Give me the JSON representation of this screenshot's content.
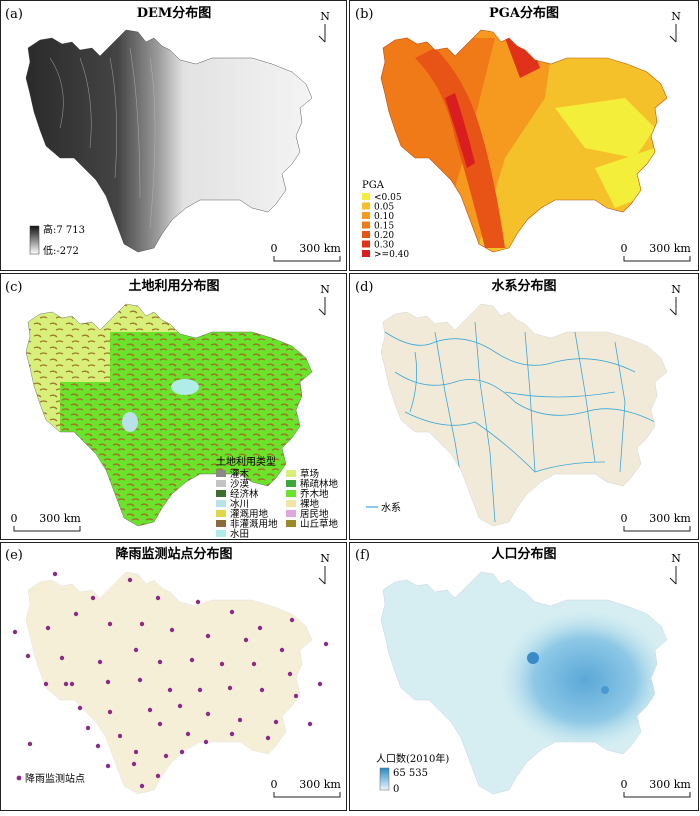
{
  "panels": [
    {
      "id": "a",
      "letter": "(a)",
      "title": "DEM分布图",
      "legend": {
        "high": "高:7 713",
        "low": "低:-272"
      }
    },
    {
      "id": "b",
      "letter": "(b)",
      "title": "PGA分布图",
      "legend": {
        "title": "PGA",
        "classes": [
          {
            "label": "<0.05",
            "color": "#f2ee3a"
          },
          {
            "label": "0.05",
            "color": "#f5c12a"
          },
          {
            "label": "0.10",
            "color": "#f59a1e"
          },
          {
            "label": "0.15",
            "color": "#f07a18"
          },
          {
            "label": "0.20",
            "color": "#e85316"
          },
          {
            "label": "0.30",
            "color": "#e0321a"
          },
          {
            "label": ">=0.40",
            "color": "#d81e1e"
          }
        ]
      }
    },
    {
      "id": "c",
      "letter": "(c)",
      "title": "土地利用分布图",
      "legend": {
        "title": "土地利用类型",
        "col1": [
          {
            "label": "灌木",
            "color": "#8a8a8a"
          },
          {
            "label": "沙漠",
            "color": "#c4c4c4"
          },
          {
            "label": "经济林",
            "color": "#3e6e2e"
          },
          {
            "label": "冰川",
            "color": "#b8e2e8"
          },
          {
            "label": "灌溉用地",
            "color": "#e0d84a"
          },
          {
            "label": "非灌溉用地",
            "color": "#8a6a3a"
          },
          {
            "label": "水田",
            "color": "#b0ece8"
          }
        ],
        "col2": [
          {
            "label": "草场",
            "color": "#d8f07a"
          },
          {
            "label": "稀疏林地",
            "color": "#3aa83a"
          },
          {
            "label": "乔木地",
            "color": "#6ae42a"
          },
          {
            "label": "裸地",
            "color": "#f0e6a8"
          },
          {
            "label": "居民地",
            "color": "#e0a8e0"
          },
          {
            "label": "山丘草地",
            "color": "#9c8a2a"
          }
        ]
      }
    },
    {
      "id": "d",
      "letter": "(d)",
      "title": "水系分布图",
      "legend": {
        "label": "水系"
      }
    },
    {
      "id": "e",
      "letter": "(e)",
      "title": "降雨监测站点分布图",
      "legend": {
        "label": "降雨监测站点"
      }
    },
    {
      "id": "f",
      "letter": "(f)",
      "title": "人口分布图",
      "legend": {
        "title": "人口数(2010年)",
        "high": "65 535",
        "low": "0"
      }
    }
  ],
  "scalebar": {
    "zero": "0",
    "dist": "300 km"
  },
  "north": "N"
}
